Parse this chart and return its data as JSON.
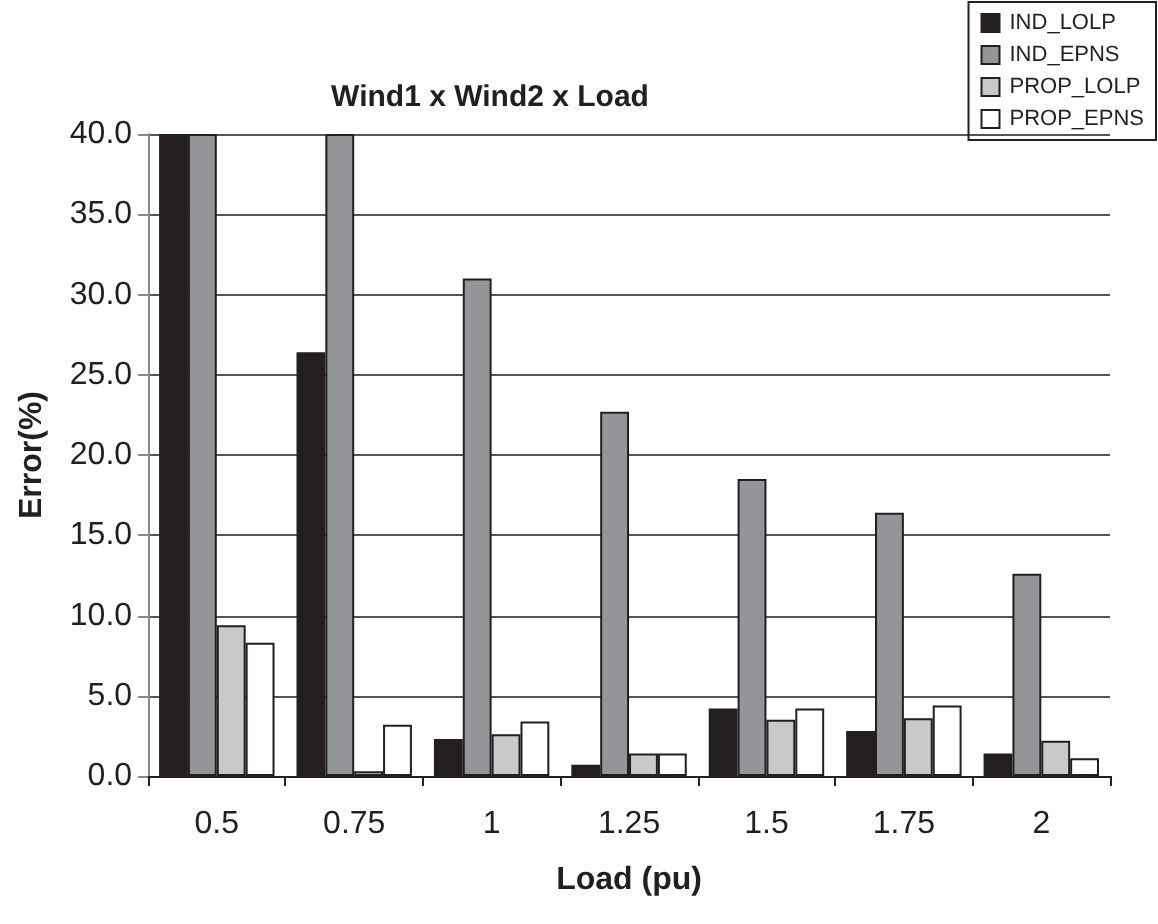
{
  "chart_data": {
    "type": "bar",
    "title": "Wind1 x Wind2 x Load",
    "xlabel": "Load (pu)",
    "ylabel": "Error(%)",
    "categories": [
      "0.5",
      "0.75",
      "1",
      "1.25",
      "1.5",
      "1.75",
      "2"
    ],
    "series": [
      {
        "name": "IND_LOLP",
        "color": "#231f20",
        "values": [
          40,
          26.4,
          2.3,
          0.7,
          4.2,
          2.8,
          1.4
        ]
      },
      {
        "name": "IND_EPNS",
        "color": "#939598",
        "values": [
          40,
          40,
          31.0,
          22.7,
          18.5,
          16.4,
          12.6
        ]
      },
      {
        "name": "PROP_LOLP",
        "color": "#c8c9cb",
        "values": [
          9.4,
          0.3,
          2.6,
          1.4,
          3.5,
          3.6,
          2.2
        ]
      },
      {
        "name": "PROP_EPNS",
        "color": "#ffffff",
        "values": [
          8.3,
          3.2,
          3.4,
          1.4,
          4.2,
          4.4,
          1.1
        ]
      }
    ],
    "ylim": [
      0,
      40
    ],
    "yticks": [
      {
        "value": 0,
        "label": "0.0"
      },
      {
        "value": 5,
        "label": "5.0"
      },
      {
        "value": 10,
        "label": "10.0"
      },
      {
        "value": 15,
        "label": "15.0"
      },
      {
        "value": 20,
        "label": "20.0"
      },
      {
        "value": 25,
        "label": "25.0"
      },
      {
        "value": 30,
        "label": "30.0"
      },
      {
        "value": 35,
        "label": "35.0"
      },
      {
        "value": 40,
        "label": "40.0"
      }
    ],
    "grid": "y",
    "legend": "top right"
  }
}
